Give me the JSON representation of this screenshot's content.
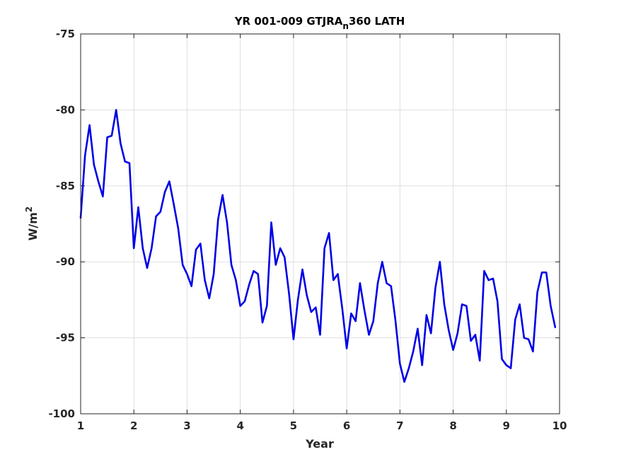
{
  "chart_data": {
    "type": "line",
    "title_main": "YR 001-009 GTJRA",
    "title_sub": "n",
    "title_tail": "360 LATH",
    "xlabel": "Year",
    "ylabel_base": "W/m",
    "ylabel_sup": "2",
    "xlim": [
      1,
      10
    ],
    "ylim": [
      -100,
      -75
    ],
    "xticks": [
      1,
      2,
      3,
      4,
      5,
      6,
      7,
      8,
      9,
      10
    ],
    "yticks": [
      -100,
      -95,
      -90,
      -85,
      -80,
      -75
    ],
    "grid": true,
    "line_color": "#0000e6",
    "series": [
      {
        "x": [
          1.0,
          1.083,
          1.167,
          1.25,
          1.333,
          1.417,
          1.5,
          1.583,
          1.667,
          1.75,
          1.833,
          1.917,
          2.0,
          2.083,
          2.167,
          2.25,
          2.333,
          2.417,
          2.5,
          2.583,
          2.667,
          2.75,
          2.833,
          2.917,
          3.0,
          3.083,
          3.167,
          3.25,
          3.333,
          3.417,
          3.5,
          3.583,
          3.667,
          3.75,
          3.833,
          3.917,
          4.0,
          4.083,
          4.167,
          4.25,
          4.333,
          4.417,
          4.5,
          4.583,
          4.667,
          4.75,
          4.833,
          4.917,
          5.0,
          5.083,
          5.167,
          5.25,
          5.333,
          5.417,
          5.5,
          5.583,
          5.667,
          5.75,
          5.833,
          5.917,
          6.0,
          6.083,
          6.167,
          6.25,
          6.333,
          6.417,
          6.5,
          6.583,
          6.667,
          6.75,
          6.833,
          6.917,
          7.0,
          7.083,
          7.167,
          7.25,
          7.333,
          7.417,
          7.5,
          7.583,
          7.667,
          7.75,
          7.833,
          7.917,
          8.0,
          8.083,
          8.167,
          8.25,
          8.333,
          8.417,
          8.5,
          8.583,
          8.667,
          8.75,
          8.833,
          8.917,
          9.0,
          9.083,
          9.167,
          9.25,
          9.333,
          9.417,
          9.5,
          9.583,
          9.667,
          9.75,
          9.833,
          9.917
        ],
        "y": [
          -87.1,
          -83.0,
          -81.0,
          -83.6,
          -84.7,
          -85.7,
          -81.8,
          -81.7,
          -80.0,
          -82.2,
          -83.4,
          -83.5,
          -89.1,
          -86.4,
          -89.1,
          -90.4,
          -89.1,
          -87.0,
          -86.7,
          -85.4,
          -84.7,
          -86.2,
          -87.8,
          -90.2,
          -90.8,
          -91.6,
          -89.2,
          -88.8,
          -91.2,
          -92.4,
          -90.8,
          -87.2,
          -85.6,
          -87.4,
          -90.2,
          -91.2,
          -92.9,
          -92.6,
          -91.5,
          -90.6,
          -90.8,
          -94.0,
          -92.9,
          -87.4,
          -90.2,
          -89.1,
          -89.7,
          -92.1,
          -95.1,
          -92.5,
          -90.5,
          -92.2,
          -93.3,
          -93.0,
          -94.8,
          -89.1,
          -88.1,
          -91.2,
          -90.8,
          -93.1,
          -95.7,
          -93.4,
          -93.9,
          -91.4,
          -93.2,
          -94.8,
          -93.9,
          -91.4,
          -90.0,
          -91.4,
          -91.6,
          -93.9,
          -96.7,
          -97.9,
          -97.0,
          -95.9,
          -94.4,
          -96.8,
          -93.5,
          -94.7,
          -91.7,
          -90.0,
          -92.8,
          -94.5,
          -95.8,
          -94.7,
          -92.8,
          -92.9,
          -95.2,
          -94.8,
          -96.5,
          -90.6,
          -91.2,
          -91.1,
          -92.6,
          -96.4,
          -96.8,
          -97.0,
          -93.8,
          -92.8,
          -95.0,
          -95.1,
          -95.9,
          -92.0,
          -90.7,
          -90.7,
          -92.9,
          -94.3
        ]
      }
    ]
  }
}
